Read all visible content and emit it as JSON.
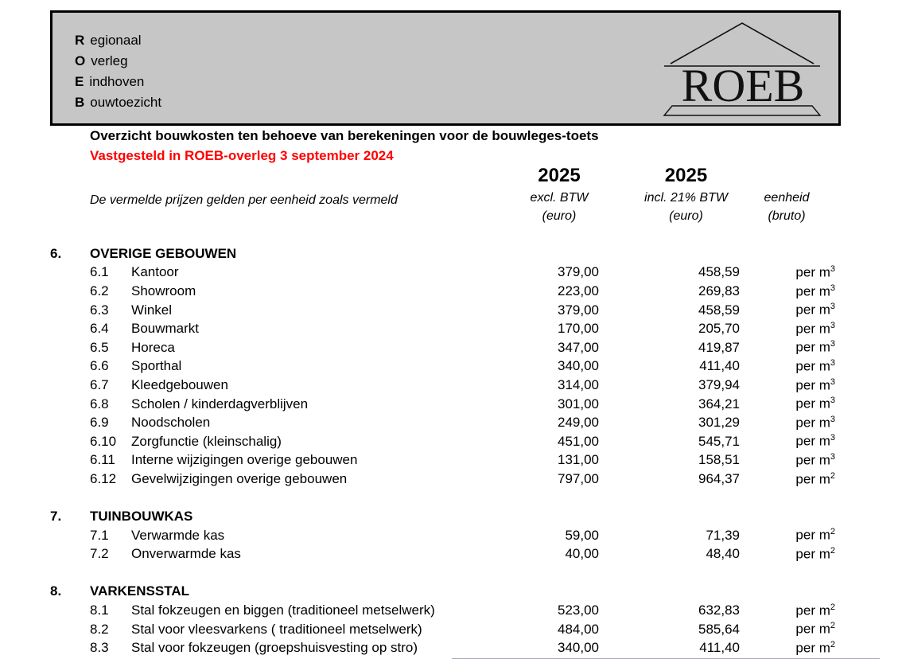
{
  "banner": {
    "lines": [
      {
        "initial": "R",
        "rest": "egionaal"
      },
      {
        "initial": "O",
        "rest": "verleg"
      },
      {
        "initial": "E",
        "rest": "indhoven"
      },
      {
        "initial": "B",
        "rest": "ouwtoezicht"
      }
    ],
    "logo_text": "ROEB",
    "background_color": "#c6c6c6"
  },
  "intro": {
    "title": "Overzicht bouwkosten ten behoeve van berekeningen voor de bouwleges-toets",
    "adopted": "Vastgesteld in ROEB-overleg 3 september 2024",
    "adopted_color": "#ff0000",
    "price_note": "De vermelde prijzen gelden per eenheid zoals vermeld"
  },
  "table_header": {
    "col_excl": {
      "year": "2025",
      "line1": "excl. BTW",
      "line2": "(euro)"
    },
    "col_incl": {
      "year": "2025",
      "line1": "incl. 21% BTW",
      "line2": "(euro)"
    },
    "col_unit": {
      "line1": "eenheid",
      "line2": "(bruto)"
    }
  },
  "sections": [
    {
      "number": "6.",
      "title": "OVERIGE GEBOUWEN",
      "rows": [
        {
          "number": "6.1",
          "label": "Kantoor",
          "excl": "379,00",
          "incl": "458,59",
          "unit": "per m",
          "unit_exp": "3"
        },
        {
          "number": "6.2",
          "label": "Showroom",
          "excl": "223,00",
          "incl": "269,83",
          "unit": "per m",
          "unit_exp": "3"
        },
        {
          "number": "6.3",
          "label": "Winkel",
          "excl": "379,00",
          "incl": "458,59",
          "unit": "per m",
          "unit_exp": "3"
        },
        {
          "number": "6.4",
          "label": "Bouwmarkt",
          "excl": "170,00",
          "incl": "205,70",
          "unit": "per m",
          "unit_exp": "3"
        },
        {
          "number": "6.5",
          "label": "Horeca",
          "excl": "347,00",
          "incl": "419,87",
          "unit": "per m",
          "unit_exp": "3"
        },
        {
          "number": "6.6",
          "label": "Sporthal",
          "excl": "340,00",
          "incl": "411,40",
          "unit": "per m",
          "unit_exp": "3"
        },
        {
          "number": "6.7",
          "label": "Kleedgebouwen",
          "excl": "314,00",
          "incl": "379,94",
          "unit": "per m",
          "unit_exp": "3"
        },
        {
          "number": "6.8",
          "label": "Scholen / kinderdagverblijven",
          "excl": "301,00",
          "incl": "364,21",
          "unit": "per m",
          "unit_exp": "3"
        },
        {
          "number": "6.9",
          "label": "Noodscholen",
          "excl": "249,00",
          "incl": "301,29",
          "unit": "per m",
          "unit_exp": "3"
        },
        {
          "number": "6.10",
          "label": "Zorgfunctie (kleinschalig)",
          "excl": "451,00",
          "incl": "545,71",
          "unit": "per m",
          "unit_exp": "3"
        },
        {
          "number": "6.11",
          "label": "Interne wijzigingen overige gebouwen",
          "excl": "131,00",
          "incl": "158,51",
          "unit": "per m",
          "unit_exp": "3"
        },
        {
          "number": "6.12",
          "label": "Gevelwijzigingen overige gebouwen",
          "excl": "797,00",
          "incl": "964,37",
          "unit": "per m",
          "unit_exp": "2"
        }
      ]
    },
    {
      "number": "7.",
      "title": "TUINBOUWKAS",
      "rows": [
        {
          "number": "7.1",
          "label": "Verwarmde kas",
          "excl": "59,00",
          "incl": "71,39",
          "unit": "per m",
          "unit_exp": "2"
        },
        {
          "number": "7.2",
          "label": "Onverwarmde kas",
          "excl": "40,00",
          "incl": "48,40",
          "unit": "per m",
          "unit_exp": "2"
        }
      ]
    },
    {
      "number": "8.",
      "title": "VARKENSSTAL",
      "rows": [
        {
          "number": "8.1",
          "label": "Stal fokzeugen en biggen (traditioneel metselwerk)",
          "excl": "523,00",
          "incl": "632,83",
          "unit": "per m",
          "unit_exp": "2"
        },
        {
          "number": "8.2",
          "label": "Stal voor vleesvarkens ( traditioneel metselwerk)",
          "excl": "484,00",
          "incl": "585,64",
          "unit": "per m",
          "unit_exp": "2"
        },
        {
          "number": "8.3",
          "label": "Stal voor fokzeugen (groepshuisvesting op stro)",
          "excl": "340,00",
          "incl": "411,40",
          "unit": "per m",
          "unit_exp": "2"
        }
      ]
    }
  ]
}
